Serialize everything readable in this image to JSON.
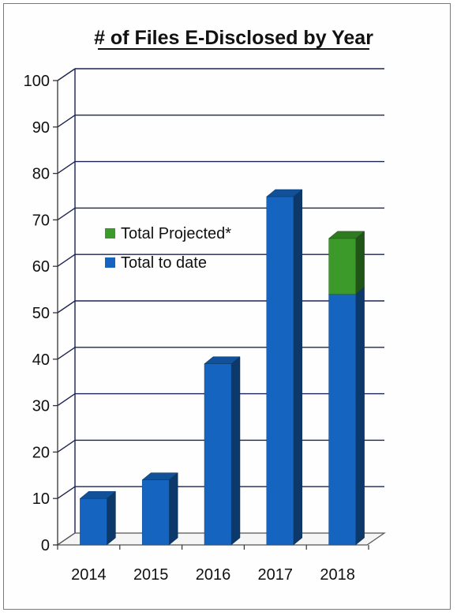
{
  "chart_data": {
    "type": "bar",
    "stacked": true,
    "three_d": true,
    "title": "# of Files  E-Disclosed by Year",
    "xlabel": "",
    "ylabel": "",
    "categories": [
      "2014",
      "2015",
      "2016",
      "2017",
      "2018"
    ],
    "series": [
      {
        "name": "Total to date",
        "color": "#1565c0",
        "values": [
          10,
          14,
          39,
          75,
          54
        ]
      },
      {
        "name": "Total Projected*",
        "color": "#3c9a2a",
        "values": [
          0,
          0,
          0,
          0,
          12
        ]
      }
    ],
    "legend_order": [
      "Total Projected*",
      "Total to date"
    ],
    "ylim": [
      0,
      100
    ],
    "yticks": [
      "0",
      "10",
      "20",
      "30",
      "40",
      "50",
      "60",
      "70",
      "80",
      "90",
      "100"
    ],
    "grid": true,
    "legend_position": "upper-left"
  }
}
